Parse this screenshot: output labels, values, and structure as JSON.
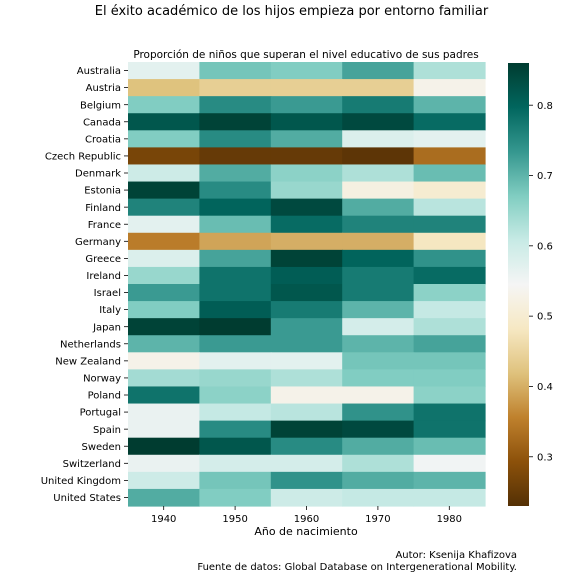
{
  "suptitle": "El éxito académico de los hijos empieza por entorno familiar",
  "credits": {
    "author": "Autor: Ksenija Khafizova",
    "source": "Fuente de datos: Global Database on Intergenerational Mobility."
  },
  "colors": {
    "colormap": "BrBG",
    "stops": [
      "#543005",
      "#8c510a",
      "#bf812d",
      "#dfc27d",
      "#f6e8c3",
      "#f5f5f5",
      "#c7eae5",
      "#80cdc1",
      "#35978f",
      "#01665e",
      "#003c30"
    ]
  },
  "chart_data": {
    "type": "heatmap",
    "title": "Proporción de niños que superan el nivel educativo de sus padres",
    "xlabel": "Año de nacimiento",
    "ylabel": "",
    "x": [
      "1940",
      "1950",
      "1960",
      "1970",
      "1980"
    ],
    "y": [
      "Australia",
      "Austria",
      "Belgium",
      "Canada",
      "Croatia",
      "Czech Republic",
      "Denmark",
      "Estonia",
      "Finland",
      "France",
      "Germany",
      "Greece",
      "Ireland",
      "Israel",
      "Italy",
      "Japan",
      "Netherlands",
      "New Zealand",
      "Norway",
      "Poland",
      "Portugal",
      "Spain",
      "Sweden",
      "Switzerland",
      "United Kingdom",
      "United States"
    ],
    "values": [
      [
        0.57,
        0.68,
        0.67,
        0.72,
        0.63
      ],
      [
        0.42,
        0.44,
        0.44,
        0.44,
        0.53
      ],
      [
        0.67,
        0.75,
        0.73,
        0.77,
        0.7
      ],
      [
        0.82,
        0.85,
        0.82,
        0.84,
        0.79
      ],
      [
        0.67,
        0.75,
        0.71,
        0.58,
        0.57
      ],
      [
        0.27,
        0.25,
        0.25,
        0.24,
        0.33
      ],
      [
        0.6,
        0.71,
        0.66,
        0.63,
        0.69
      ],
      [
        0.85,
        0.75,
        0.65,
        0.52,
        0.5
      ],
      [
        0.76,
        0.8,
        0.84,
        0.71,
        0.62
      ],
      [
        0.57,
        0.69,
        0.79,
        0.76,
        0.76
      ],
      [
        0.35,
        0.39,
        0.4,
        0.4,
        0.48
      ],
      [
        0.58,
        0.72,
        0.85,
        0.8,
        0.74
      ],
      [
        0.65,
        0.78,
        0.81,
        0.77,
        0.79
      ],
      [
        0.73,
        0.78,
        0.82,
        0.77,
        0.66
      ],
      [
        0.67,
        0.81,
        0.77,
        0.7,
        0.61
      ],
      [
        0.85,
        0.88,
        0.73,
        0.59,
        0.63
      ],
      [
        0.7,
        0.73,
        0.73,
        0.7,
        0.72
      ],
      [
        0.53,
        0.57,
        0.57,
        0.68,
        0.68
      ],
      [
        0.64,
        0.65,
        0.63,
        0.67,
        0.67
      ],
      [
        0.78,
        0.66,
        0.53,
        0.53,
        0.66
      ],
      [
        0.56,
        0.61,
        0.62,
        0.74,
        0.78
      ],
      [
        0.56,
        0.75,
        0.85,
        0.84,
        0.78
      ],
      [
        0.86,
        0.82,
        0.75,
        0.71,
        0.69
      ],
      [
        0.56,
        0.59,
        0.59,
        0.63,
        0.55
      ],
      [
        0.6,
        0.68,
        0.74,
        0.71,
        0.7
      ],
      [
        0.71,
        0.67,
        0.6,
        0.61,
        0.61
      ]
    ],
    "vmin": 0.23,
    "vmax": 0.86,
    "colorbar_ticks": [
      0.3,
      0.4,
      0.5,
      0.6,
      0.7,
      0.8
    ],
    "grid": false
  }
}
